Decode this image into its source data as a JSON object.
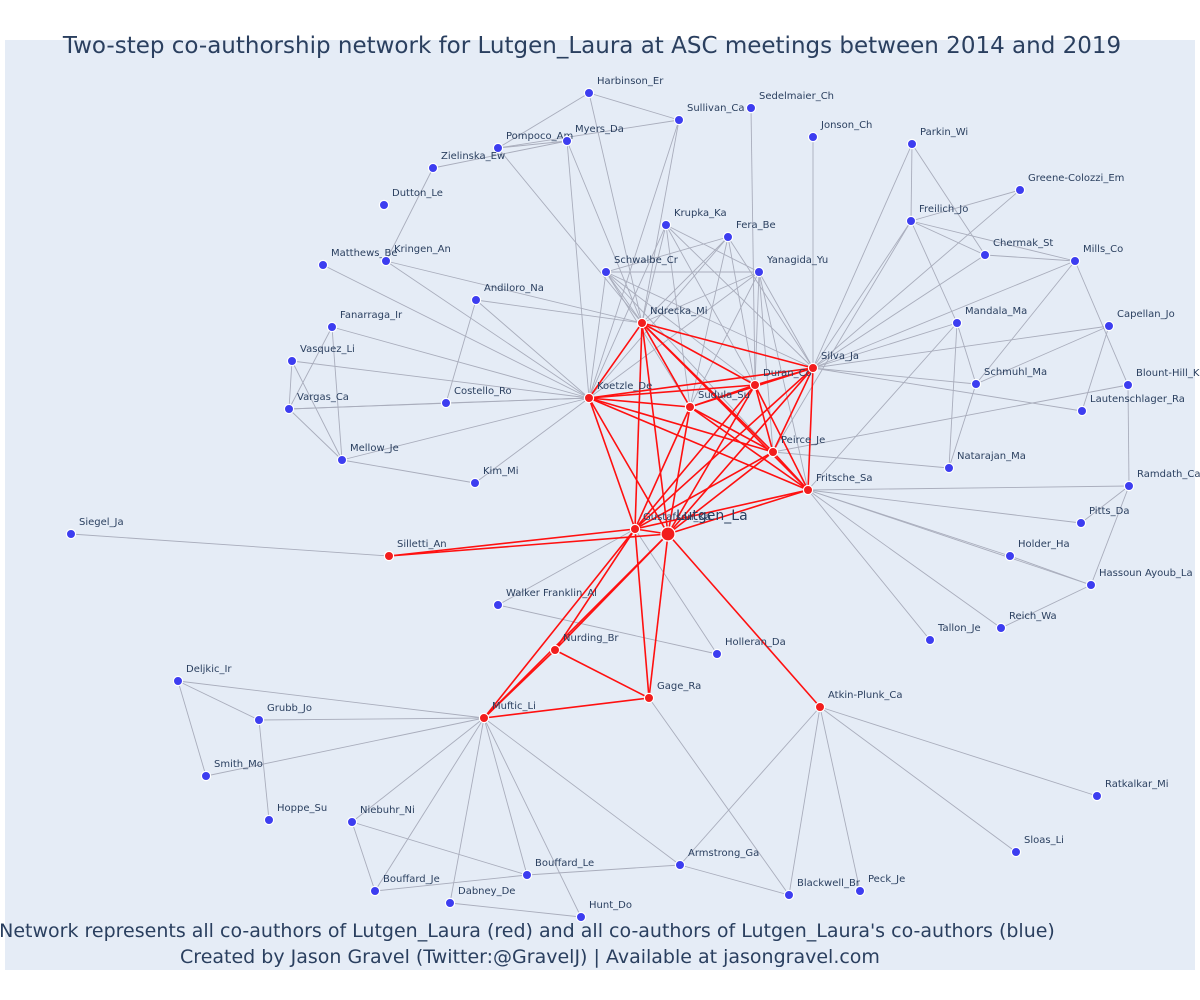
{
  "title": "Two-step co-authorship network for Lutgen_Laura at ASC meetings between 2014 and 2019",
  "caption_line1": "Network represents all co-authors of Lutgen_Laura (red) and all co-authors of Lutgen_Laura's co-authors (blue)",
  "caption_line2": "Created by Jason Gravel (Twitter:@GravelJ) | Available at jasongravel.com",
  "colors": {
    "background": "#e5ecf6",
    "first_step_node": "#f21d1d",
    "second_step_node": "#3d3df0",
    "first_step_edge": "#ff1010",
    "second_step_edge": "#a9adbc",
    "text": "#2a3f5f"
  },
  "nodes": [
    {
      "id": "Lutgen_La",
      "label": "Lutgen_La",
      "group": "center"
    },
    {
      "id": "Gustafson_Ka",
      "label": "Gustafson_Ka",
      "group": "red"
    },
    {
      "id": "Ndrecka_Mi",
      "label": "Ndrecka_Mi",
      "group": "red"
    },
    {
      "id": "Koetzle_De",
      "label": "Koetzle_De",
      "group": "red"
    },
    {
      "id": "Duran_Co",
      "label": "Duran_Co",
      "group": "red"
    },
    {
      "id": "Silva_Ja",
      "label": "Silva_Ja",
      "group": "red"
    },
    {
      "id": "Sudula_Su",
      "label": "Sudula_Su",
      "group": "red"
    },
    {
      "id": "Peirce_Je",
      "label": "Peirce_Je",
      "group": "red"
    },
    {
      "id": "Fritsche_Sa",
      "label": "Fritsche_Sa",
      "group": "red"
    },
    {
      "id": "Silletti_An",
      "label": "Silletti_An",
      "group": "red"
    },
    {
      "id": "Nurding_Br",
      "label": "Nurding_Br",
      "group": "red"
    },
    {
      "id": "Gage_Ra",
      "label": "Gage_Ra",
      "group": "red"
    },
    {
      "id": "Muftic_Li",
      "label": "Muftic_Li",
      "group": "red"
    },
    {
      "id": "Atkin-Plunk_Ca",
      "label": "Atkin-Plunk_Ca",
      "group": "red"
    },
    {
      "id": "Harbinson_Er",
      "label": "Harbinson_Er",
      "group": "blue"
    },
    {
      "id": "Sullivan_Ca",
      "label": "Sullivan_Ca",
      "group": "blue"
    },
    {
      "id": "Sedelmaier_Ch",
      "label": "Sedelmaier_Ch",
      "group": "blue"
    },
    {
      "id": "Pompoco_Am",
      "label": "Pompoco_Am",
      "group": "blue"
    },
    {
      "id": "Myers_Da",
      "label": "Myers_Da",
      "group": "blue"
    },
    {
      "id": "Jonson_Ch",
      "label": "Jonson_Ch",
      "group": "blue"
    },
    {
      "id": "Zielinska_Ew",
      "label": "Zielinska_Ew",
      "group": "blue"
    },
    {
      "id": "Parkin_Wi",
      "label": "Parkin_Wi",
      "group": "blue"
    },
    {
      "id": "Dutton_Le",
      "label": "Dutton_Le",
      "group": "blue"
    },
    {
      "id": "Greene-Colozzi_Em",
      "label": "Greene-Colozzi_Em",
      "group": "blue"
    },
    {
      "id": "Freilich_Jo",
      "label": "Freilich_Jo",
      "group": "blue"
    },
    {
      "id": "Krupka_Ka",
      "label": "Krupka_Ka",
      "group": "blue"
    },
    {
      "id": "Fera_Be",
      "label": "Fera_Be",
      "group": "blue"
    },
    {
      "id": "Chermak_St",
      "label": "Chermak_St",
      "group": "blue"
    },
    {
      "id": "Mills_Co",
      "label": "Mills_Co",
      "group": "blue"
    },
    {
      "id": "Matthews_Be",
      "label": "Matthews_Be",
      "group": "blue"
    },
    {
      "id": "Kringen_An",
      "label": "Kringen_An",
      "group": "blue"
    },
    {
      "id": "Schwalbe_Cr",
      "label": "Schwalbe_Cr",
      "group": "blue"
    },
    {
      "id": "Yanagida_Yu",
      "label": "Yanagida_Yu",
      "group": "blue"
    },
    {
      "id": "Andiloro_Na",
      "label": "Andiloro_Na",
      "group": "blue"
    },
    {
      "id": "Capellan_Jo",
      "label": "Capellan_Jo",
      "group": "blue"
    },
    {
      "id": "Fanarraga_Ir",
      "label": "Fanarraga_Ir",
      "group": "blue"
    },
    {
      "id": "Mandala_Ma",
      "label": "Mandala_Ma",
      "group": "blue"
    },
    {
      "id": "Vasquez_Li",
      "label": "Vasquez_Li",
      "group": "blue"
    },
    {
      "id": "Blount-Hill_K",
      "label": "Blount-Hill_K",
      "group": "blue"
    },
    {
      "id": "Schmuhl_Ma",
      "label": "Schmuhl_Ma",
      "group": "blue"
    },
    {
      "id": "Vargas_Ca",
      "label": "Vargas_Ca",
      "group": "blue"
    },
    {
      "id": "Costello_Ro",
      "label": "Costello_Ro",
      "group": "blue"
    },
    {
      "id": "Lautenschlager_Ra",
      "label": "Lautenschlager_Ra",
      "group": "blue"
    },
    {
      "id": "Mellow_Je",
      "label": "Mellow_Je",
      "group": "blue"
    },
    {
      "id": "Kim_Mi",
      "label": "Kim_Mi",
      "group": "blue"
    },
    {
      "id": "Natarajan_Ma",
      "label": "Natarajan_Ma",
      "group": "blue"
    },
    {
      "id": "Ramdath_Ca",
      "label": "Ramdath_Ca",
      "group": "blue"
    },
    {
      "id": "Pitts_Da",
      "label": "Pitts_Da",
      "group": "blue"
    },
    {
      "id": "Siegel_Ja",
      "label": "Siegel_Ja",
      "group": "blue"
    },
    {
      "id": "Holder_Ha",
      "label": "Holder_Ha",
      "group": "blue"
    },
    {
      "id": "Hassoun Ayoub_La",
      "label": "Hassoun Ayoub_La",
      "group": "blue"
    },
    {
      "id": "Walker Franklin_Al",
      "label": "Walker Franklin_Al",
      "group": "blue"
    },
    {
      "id": "Reich_Wa",
      "label": "Reich_Wa",
      "group": "blue"
    },
    {
      "id": "Tallon_Je",
      "label": "Tallon_Je",
      "group": "blue"
    },
    {
      "id": "Holleran_Da",
      "label": "Holleran_Da",
      "group": "blue"
    },
    {
      "id": "Deljkic_Ir",
      "label": "Deljkic_Ir",
      "group": "blue"
    },
    {
      "id": "Grubb_Jo",
      "label": "Grubb_Jo",
      "group": "blue"
    },
    {
      "id": "Smith_Mo",
      "label": "Smith_Mo",
      "group": "blue"
    },
    {
      "id": "Ratkalkar_Mi",
      "label": "Ratkalkar_Mi",
      "group": "blue"
    },
    {
      "id": "Hoppe_Su",
      "label": "Hoppe_Su",
      "group": "blue"
    },
    {
      "id": "Niebuhr_Ni",
      "label": "Niebuhr_Ni",
      "group": "blue"
    },
    {
      "id": "Sloas_Li",
      "label": "Sloas_Li",
      "group": "blue"
    },
    {
      "id": "Armstrong_Ga",
      "label": "Armstrong_Ga",
      "group": "blue"
    },
    {
      "id": "Bouffard_Le",
      "label": "Bouffard_Le",
      "group": "blue"
    },
    {
      "id": "Bouffard_Je",
      "label": "Bouffard_Je",
      "group": "blue"
    },
    {
      "id": "Dabney_De",
      "label": "Dabney_De",
      "group": "blue"
    },
    {
      "id": "Blackwell_Br",
      "label": "Blackwell_Br",
      "group": "blue"
    },
    {
      "id": "Peck_Je",
      "label": "Peck_Je",
      "group": "blue"
    },
    {
      "id": "Hunt_Do",
      "label": "Hunt_Do",
      "group": "blue"
    }
  ],
  "red_edges": [
    [
      "Lutgen_La",
      "Gustafson_Ka"
    ],
    [
      "Lutgen_La",
      "Ndrecka_Mi"
    ],
    [
      "Lutgen_La",
      "Koetzle_De"
    ],
    [
      "Lutgen_La",
      "Duran_Co"
    ],
    [
      "Lutgen_La",
      "Silva_Ja"
    ],
    [
      "Lutgen_La",
      "Sudula_Su"
    ],
    [
      "Lutgen_La",
      "Peirce_Je"
    ],
    [
      "Lutgen_La",
      "Fritsche_Sa"
    ],
    [
      "Lutgen_La",
      "Silletti_An"
    ],
    [
      "Lutgen_La",
      "Nurding_Br"
    ],
    [
      "Lutgen_La",
      "Gage_Ra"
    ],
    [
      "Lutgen_La",
      "Muftic_Li"
    ],
    [
      "Lutgen_La",
      "Atkin-Plunk_Ca"
    ],
    [
      "Gustafson_Ka",
      "Ndrecka_Mi"
    ],
    [
      "Gustafson_Ka",
      "Koetzle_De"
    ],
    [
      "Gustafson_Ka",
      "Duran_Co"
    ],
    [
      "Gustafson_Ka",
      "Silva_Ja"
    ],
    [
      "Gustafson_Ka",
      "Sudula_Su"
    ],
    [
      "Gustafson_Ka",
      "Peirce_Je"
    ],
    [
      "Gustafson_Ka",
      "Fritsche_Sa"
    ],
    [
      "Gustafson_Ka",
      "Silletti_An"
    ],
    [
      "Gustafson_Ka",
      "Nurding_Br"
    ],
    [
      "Gustafson_Ka",
      "Muftic_Li"
    ],
    [
      "Gustafson_Ka",
      "Gage_Ra"
    ],
    [
      "Ndrecka_Mi",
      "Koetzle_De"
    ],
    [
      "Ndrecka_Mi",
      "Duran_Co"
    ],
    [
      "Ndrecka_Mi",
      "Silva_Ja"
    ],
    [
      "Ndrecka_Mi",
      "Sudula_Su"
    ],
    [
      "Ndrecka_Mi",
      "Peirce_Je"
    ],
    [
      "Ndrecka_Mi",
      "Fritsche_Sa"
    ],
    [
      "Koetzle_De",
      "Duran_Co"
    ],
    [
      "Koetzle_De",
      "Silva_Ja"
    ],
    [
      "Koetzle_De",
      "Sudula_Su"
    ],
    [
      "Koetzle_De",
      "Peirce_Je"
    ],
    [
      "Koetzle_De",
      "Fritsche_Sa"
    ],
    [
      "Duran_Co",
      "Silva_Ja"
    ],
    [
      "Duran_Co",
      "Sudula_Su"
    ],
    [
      "Duran_Co",
      "Peirce_Je"
    ],
    [
      "Duran_Co",
      "Fritsche_Sa"
    ],
    [
      "Silva_Ja",
      "Sudula_Su"
    ],
    [
      "Silva_Ja",
      "Peirce_Je"
    ],
    [
      "Silva_Ja",
      "Fritsche_Sa"
    ],
    [
      "Sudula_Su",
      "Peirce_Je"
    ],
    [
      "Sudula_Su",
      "Fritsche_Sa"
    ],
    [
      "Peirce_Je",
      "Fritsche_Sa"
    ],
    [
      "Nurding_Br",
      "Muftic_Li"
    ],
    [
      "Nurding_Br",
      "Gage_Ra"
    ],
    [
      "Muftic_Li",
      "Gage_Ra"
    ]
  ],
  "blue_edges": [
    [
      "Ndrecka_Mi",
      "Harbinson_Er"
    ],
    [
      "Ndrecka_Mi",
      "Sullivan_Ca"
    ],
    [
      "Ndrecka_Mi",
      "Pompoco_Am"
    ],
    [
      "Ndrecka_Mi",
      "Myers_Da"
    ],
    [
      "Ndrecka_Mi",
      "Krupka_Ka"
    ],
    [
      "Ndrecka_Mi",
      "Fera_Be"
    ],
    [
      "Ndrecka_Mi",
      "Schwalbe_Cr"
    ],
    [
      "Ndrecka_Mi",
      "Yanagida_Yu"
    ],
    [
      "Ndrecka_Mi",
      "Kringen_An"
    ],
    [
      "Ndrecka_Mi",
      "Andiloro_Na"
    ],
    [
      "Harbinson_Er",
      "Sullivan_Ca"
    ],
    [
      "Harbinson_Er",
      "Pompoco_Am"
    ],
    [
      "Pompoco_Am",
      "Myers_Da"
    ],
    [
      "Pompoco_Am",
      "Sullivan_Ca"
    ],
    [
      "Zielinska_Ew",
      "Myers_Da"
    ],
    [
      "Zielinska_Ew",
      "Kringen_An"
    ],
    [
      "Koetzle_De",
      "Matthews_Be"
    ],
    [
      "Koetzle_De",
      "Fanarraga_Ir"
    ],
    [
      "Koetzle_De",
      "Vasquez_Li"
    ],
    [
      "Koetzle_De",
      "Vargas_Ca"
    ],
    [
      "Koetzle_De",
      "Costello_Ro"
    ],
    [
      "Koetzle_De",
      "Mellow_Je"
    ],
    [
      "Koetzle_De",
      "Kim_Mi"
    ],
    [
      "Koetzle_De",
      "Andiloro_Na"
    ],
    [
      "Koetzle_De",
      "Krupka_Ka"
    ],
    [
      "Koetzle_De",
      "Schwalbe_Cr"
    ],
    [
      "Koetzle_De",
      "Fera_Be"
    ],
    [
      "Koetzle_De",
      "Yanagida_Yu"
    ],
    [
      "Koetzle_De",
      "Kringen_An"
    ],
    [
      "Koetzle_De",
      "Myers_Da"
    ],
    [
      "Koetzle_De",
      "Sullivan_Ca"
    ],
    [
      "Fanarraga_Ir",
      "Vargas_Ca"
    ],
    [
      "Fanarraga_Ir",
      "Mellow_Je"
    ],
    [
      "Vasquez_Li",
      "Vargas_Ca"
    ],
    [
      "Vasquez_Li",
      "Mellow_Je"
    ],
    [
      "Vargas_Ca",
      "Mellow_Je"
    ],
    [
      "Vargas_Ca",
      "Costello_Ro"
    ],
    [
      "Mellow_Je",
      "Kim_Mi"
    ],
    [
      "Costello_Ro",
      "Andiloro_Na"
    ],
    [
      "Silva_Ja",
      "Parkin_Wi"
    ],
    [
      "Silva_Ja",
      "Freilich_Jo"
    ],
    [
      "Silva_Ja",
      "Greene-Colozzi_Em"
    ],
    [
      "Silva_Ja",
      "Chermak_St"
    ],
    [
      "Silva_Ja",
      "Mills_Co"
    ],
    [
      "Silva_Ja",
      "Capellan_Jo"
    ],
    [
      "Silva_Ja",
      "Mandala_Ma"
    ],
    [
      "Silva_Ja",
      "Schmuhl_Ma"
    ],
    [
      "Silva_Ja",
      "Lautenschlager_Ra"
    ],
    [
      "Silva_Ja",
      "Jonson_Ch"
    ],
    [
      "Silva_Ja",
      "Krupka_Ka"
    ],
    [
      "Silva_Ja",
      "Schwalbe_Cr"
    ],
    [
      "Silva_Ja",
      "Yanagida_Yu"
    ],
    [
      "Silva_Ja",
      "Fera_Be"
    ],
    [
      "Parkin_Wi",
      "Freilich_Jo"
    ],
    [
      "Parkin_Wi",
      "Chermak_St"
    ],
    [
      "Freilich_Jo",
      "Greene-Colozzi_Em"
    ],
    [
      "Freilich_Jo",
      "Chermak_St"
    ],
    [
      "Freilich_Jo",
      "Mills_Co"
    ],
    [
      "Freilich_Jo",
      "Mandala_Ma"
    ],
    [
      "Chermak_St",
      "Mills_Co"
    ],
    [
      "Mills_Co",
      "Schmuhl_Ma"
    ],
    [
      "Mills_Co",
      "Blount-Hill_K"
    ],
    [
      "Mandala_Ma",
      "Schmuhl_Ma"
    ],
    [
      "Mandala_Ma",
      "Natarajan_Ma"
    ],
    [
      "Schmuhl_Ma",
      "Natarajan_Ma"
    ],
    [
      "Capellan_Jo",
      "Lautenschlager_Ra"
    ],
    [
      "Capellan_Jo",
      "Schmuhl_Ma"
    ],
    [
      "Blount-Hill_K",
      "Ramdath_Ca"
    ],
    [
      "Sudula_Su",
      "Fera_Be"
    ],
    [
      "Sudula_Su",
      "Krupka_Ka"
    ],
    [
      "Sudula_Su",
      "Yanagida_Yu"
    ],
    [
      "Sudula_Su",
      "Schwalbe_Cr"
    ],
    [
      "Duran_Co",
      "Sedelmaier_Ch"
    ],
    [
      "Duran_Co",
      "Krupka_Ka"
    ],
    [
      "Duran_Co",
      "Fera_Be"
    ],
    [
      "Duran_Co",
      "Schwalbe_Cr"
    ],
    [
      "Duran_Co",
      "Yanagida_Yu"
    ],
    [
      "Schwalbe_Cr",
      "Yanagida_Yu"
    ],
    [
      "Krupka_Ka",
      "Yanagida_Yu"
    ],
    [
      "Fera_Be",
      "Schwalbe_Cr"
    ],
    [
      "Peirce_Je",
      "Natarajan_Ma"
    ],
    [
      "Peirce_Je",
      "Blount-Hill_K"
    ],
    [
      "Peirce_Je",
      "Yanagida_Yu"
    ],
    [
      "Peirce_Je",
      "Freilich_Jo"
    ],
    [
      "Fritsche_Sa",
      "Ramdath_Ca"
    ],
    [
      "Fritsche_Sa",
      "Pitts_Da"
    ],
    [
      "Fritsche_Sa",
      "Holder_Ha"
    ],
    [
      "Fritsche_Sa",
      "Hassoun Ayoub_La"
    ],
    [
      "Fritsche_Sa",
      "Tallon_Je"
    ],
    [
      "Fritsche_Sa",
      "Reich_Wa"
    ],
    [
      "Fritsche_Sa",
      "Mandala_Ma"
    ],
    [
      "Fritsche_Sa",
      "Schwalbe_Cr"
    ],
    [
      "Fritsche_Sa",
      "Yanagida_Yu"
    ],
    [
      "Ramdath_Ca",
      "Pitts_Da"
    ],
    [
      "Ramdath_Ca",
      "Hassoun Ayoub_La"
    ],
    [
      "Holder_Ha",
      "Hassoun Ayoub_La"
    ],
    [
      "Hassoun Ayoub_La",
      "Reich_Wa"
    ],
    [
      "Silletti_An",
      "Siegel_Ja"
    ],
    [
      "Gustafson_Ka",
      "Walker Franklin_Al"
    ],
    [
      "Gustafson_Ka",
      "Holleran_Da"
    ],
    [
      "Walker Franklin_Al",
      "Holleran_Da"
    ],
    [
      "Muftic_Li",
      "Deljkic_Ir"
    ],
    [
      "Muftic_Li",
      "Grubb_Jo"
    ],
    [
      "Muftic_Li",
      "Smith_Mo"
    ],
    [
      "Muftic_Li",
      "Niebuhr_Ni"
    ],
    [
      "Muftic_Li",
      "Bouffard_Le"
    ],
    [
      "Muftic_Li",
      "Bouffard_Je"
    ],
    [
      "Muftic_Li",
      "Dabney_De"
    ],
    [
      "Muftic_Li",
      "Hunt_Do"
    ],
    [
      "Muftic_Li",
      "Armstrong_Ga"
    ],
    [
      "Deljkic_Ir",
      "Grubb_Jo"
    ],
    [
      "Deljkic_Ir",
      "Smith_Mo"
    ],
    [
      "Grubb_Jo",
      "Hoppe_Su"
    ],
    [
      "Niebuhr_Ni",
      "Bouffard_Le"
    ],
    [
      "Niebuhr_Ni",
      "Bouffard_Je"
    ],
    [
      "Bouffard_Je",
      "Bouffard_Le"
    ],
    [
      "Dabney_De",
      "Hunt_Do"
    ],
    [
      "Bouffard_Le",
      "Armstrong_Ga"
    ],
    [
      "Gage_Ra",
      "Blackwell_Br"
    ],
    [
      "Atkin-Plunk_Ca",
      "Armstrong_Ga"
    ],
    [
      "Atkin-Plunk_Ca",
      "Blackwell_Br"
    ],
    [
      "Atkin-Plunk_Ca",
      "Peck_Je"
    ],
    [
      "Atkin-Plunk_Ca",
      "Sloas_Li"
    ],
    [
      "Atkin-Plunk_Ca",
      "Ratkalkar_Mi"
    ],
    [
      "Armstrong_Ga",
      "Blackwell_Br"
    ]
  ]
}
